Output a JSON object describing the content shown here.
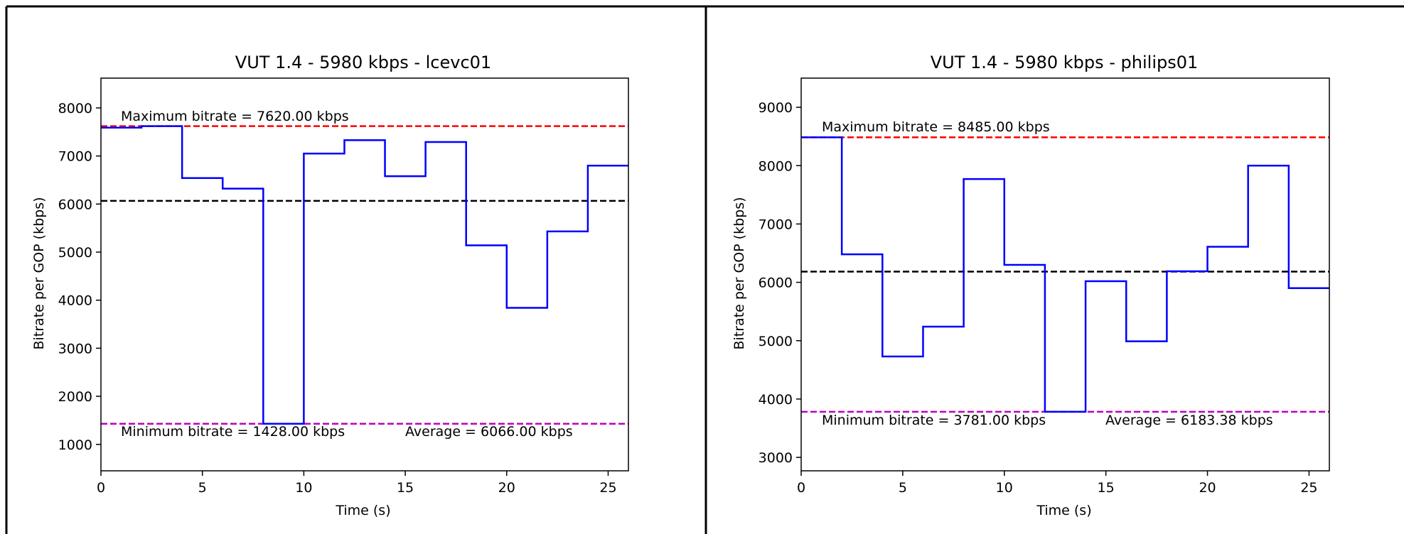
{
  "chart_data": [
    {
      "type": "line",
      "title": "VUT 1.4 - 5980 kbps - lcevc01",
      "xlabel": "Time (s)",
      "ylabel": "Bitrate per GOP (kbps)",
      "xlim": [
        0,
        26
      ],
      "ylim": [
        450,
        8620
      ],
      "xticks": [
        0,
        5,
        10,
        15,
        20,
        25
      ],
      "yticks": [
        1000,
        2000,
        3000,
        4000,
        5000,
        6000,
        7000,
        8000
      ],
      "grid": false,
      "series": [
        {
          "style": "step",
          "color": "#0000ff",
          "x": [
            0,
            2,
            4,
            6,
            8,
            10,
            12,
            14,
            16,
            18,
            20,
            22,
            24,
            26
          ],
          "values": [
            7590,
            7620,
            6540,
            6320,
            1428,
            7050,
            7330,
            6580,
            7290,
            5140,
            3840,
            5430,
            6800,
            6800
          ]
        }
      ],
      "reference_lines": [
        {
          "kind": "max",
          "value": 7620,
          "color": "#ff0000",
          "label": "Maximum bitrate = 7620.00 kbps"
        },
        {
          "kind": "min",
          "value": 1428,
          "color": "#bf00bf",
          "label": "Minimum bitrate = 1428.00 kbps"
        },
        {
          "kind": "average",
          "value": 6066,
          "color": "#000000",
          "label": "Average = 6066.00 kbps"
        }
      ]
    },
    {
      "type": "line",
      "title": "VUT 1.4 - 5980 kbps - philips01",
      "xlabel": "Time (s)",
      "ylabel": "Bitrate per GOP (kbps)",
      "xlim": [
        0,
        26
      ],
      "ylim": [
        2770,
        9500
      ],
      "xticks": [
        0,
        5,
        10,
        15,
        20,
        25
      ],
      "yticks": [
        3000,
        4000,
        5000,
        6000,
        7000,
        8000,
        9000
      ],
      "grid": false,
      "series": [
        {
          "style": "step",
          "color": "#0000ff",
          "x": [
            0,
            2,
            4,
            6,
            8,
            10,
            12,
            14,
            16,
            18,
            20,
            22,
            24,
            26
          ],
          "values": [
            8485,
            6480,
            4730,
            5240,
            7770,
            6300,
            3781,
            6020,
            4990,
            6190,
            6610,
            8000,
            5900,
            5900
          ]
        }
      ],
      "reference_lines": [
        {
          "kind": "max",
          "value": 8485,
          "color": "#ff0000",
          "label": "Maximum bitrate = 8485.00 kbps"
        },
        {
          "kind": "min",
          "value": 3781,
          "color": "#bf00bf",
          "label": "Minimum bitrate = 3781.00 kbps"
        },
        {
          "kind": "average",
          "value": 6183.38,
          "color": "#000000",
          "label": "Average = 6183.38 kbps"
        }
      ]
    }
  ]
}
